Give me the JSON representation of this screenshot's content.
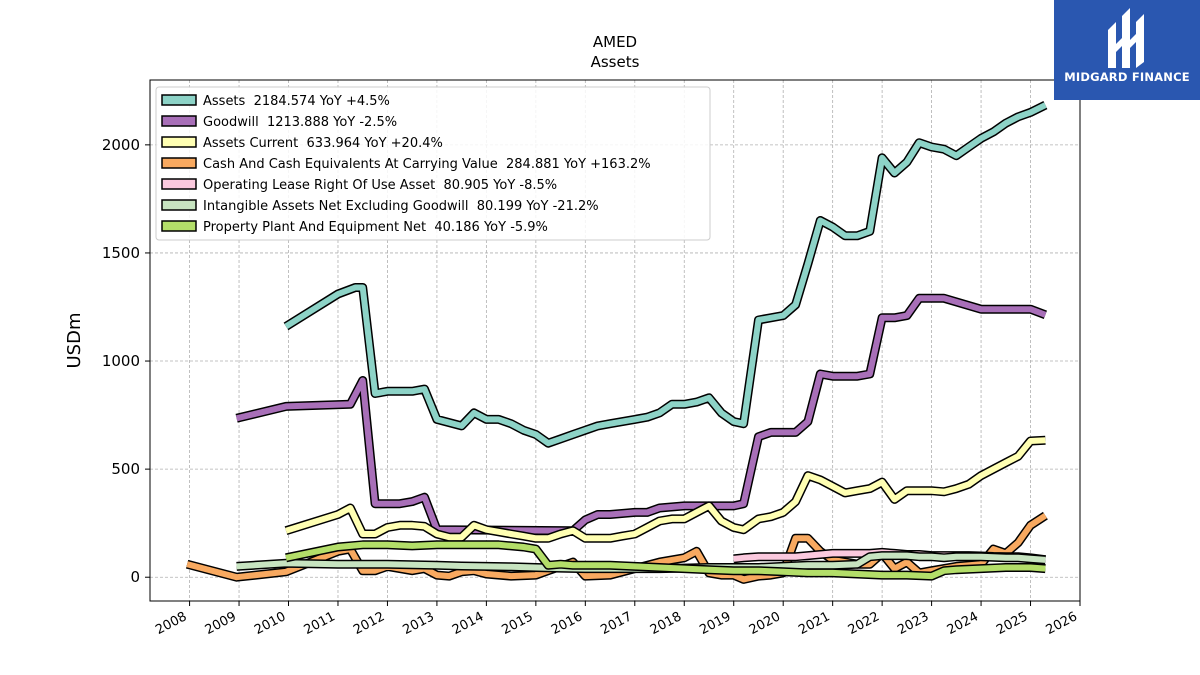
{
  "chart_data": {
    "type": "line",
    "title": "AMED",
    "subtitle": "Assets",
    "ylabel": "USDm",
    "xlabel": "",
    "xlim": [
      2007.2,
      2026.0
    ],
    "ylim": [
      -110,
      2300
    ],
    "yticks": [
      0,
      500,
      1000,
      1500,
      2000
    ],
    "xticks": [
      "2008",
      "2009",
      "2010",
      "2011",
      "2012",
      "2013",
      "2014",
      "2015",
      "2016",
      "2017",
      "2018",
      "2019",
      "2020",
      "2021",
      "2022",
      "2023",
      "2024",
      "2025",
      "2026"
    ],
    "grid": true,
    "legend_position": "top-left",
    "series": [
      {
        "name": "Assets  2184.574 YoY +4.5%",
        "color": "#8dd3c7",
        "x": [
          2009.95,
          2011.0,
          2011.35,
          2011.5,
          2011.75,
          2012.0,
          2012.25,
          2012.5,
          2012.75,
          2013.0,
          2013.5,
          2013.75,
          2014.0,
          2014.25,
          2014.5,
          2014.75,
          2015.0,
          2015.25,
          2015.5,
          2015.75,
          2016.0,
          2016.25,
          2016.5,
          2016.75,
          2017.0,
          2017.25,
          2017.5,
          2017.75,
          2018.0,
          2018.25,
          2018.5,
          2018.75,
          2019.0,
          2019.2,
          2019.5,
          2019.75,
          2020.0,
          2020.25,
          2020.5,
          2020.75,
          2021.0,
          2021.25,
          2021.5,
          2021.75,
          2022.0,
          2022.25,
          2022.5,
          2022.75,
          2023.0,
          2023.25,
          2023.5,
          2023.75,
          2024.0,
          2024.25,
          2024.5,
          2024.75,
          2025.0,
          2025.3
        ],
        "y": [
          1160,
          1310,
          1340,
          1340,
          850,
          860,
          860,
          860,
          870,
          730,
          700,
          760,
          730,
          730,
          710,
          680,
          660,
          620,
          640,
          660,
          680,
          700,
          710,
          720,
          730,
          740,
          760,
          800,
          800,
          810,
          830,
          760,
          720,
          710,
          1190,
          1200,
          1210,
          1260,
          1450,
          1650,
          1620,
          1580,
          1580,
          1600,
          1940,
          1870,
          1920,
          2010,
          1990,
          1980,
          1950,
          1990,
          2030,
          2060,
          2100,
          2130,
          2150,
          2184
        ]
      },
      {
        "name": "Goodwill  1213.888 YoY -2.5%",
        "color": "#a86fb8",
        "x": [
          2008.95,
          2009.95,
          2011.25,
          2011.5,
          2011.75,
          2012.0,
          2012.25,
          2012.5,
          2012.75,
          2013.0,
          2015.75,
          2016.0,
          2016.25,
          2016.5,
          2017.0,
          2017.25,
          2017.5,
          2018.0,
          2018.5,
          2018.75,
          2019.0,
          2019.2,
          2019.5,
          2019.75,
          2020.0,
          2020.25,
          2020.5,
          2020.75,
          2021.0,
          2021.25,
          2021.5,
          2021.75,
          2022.0,
          2022.25,
          2022.5,
          2022.75,
          2023.0,
          2023.25,
          2024.0,
          2024.5,
          2024.75,
          2025.0,
          2025.3
        ],
        "y": [
          735,
          790,
          800,
          910,
          340,
          340,
          340,
          350,
          370,
          220,
          215,
          265,
          290,
          290,
          300,
          300,
          320,
          330,
          330,
          330,
          330,
          340,
          650,
          670,
          670,
          670,
          720,
          940,
          930,
          930,
          930,
          940,
          1200,
          1200,
          1210,
          1290,
          1290,
          1290,
          1240,
          1240,
          1240,
          1240,
          1214
        ]
      },
      {
        "name": "Assets Current  633.964 YoY +20.4%",
        "color": "#ffffb3",
        "x": [
          2009.95,
          2011.0,
          2011.25,
          2011.5,
          2011.75,
          2012.0,
          2012.25,
          2012.5,
          2012.75,
          2013.0,
          2013.25,
          2013.5,
          2013.75,
          2014.0,
          2014.25,
          2014.5,
          2014.75,
          2015.0,
          2015.25,
          2015.5,
          2015.75,
          2016.0,
          2016.25,
          2016.5,
          2016.75,
          2017.0,
          2017.25,
          2017.5,
          2017.75,
          2018.0,
          2018.25,
          2018.5,
          2018.75,
          2019.0,
          2019.2,
          2019.5,
          2019.75,
          2020.0,
          2020.25,
          2020.5,
          2020.75,
          2021.0,
          2021.25,
          2021.5,
          2021.75,
          2022.0,
          2022.25,
          2022.5,
          2022.75,
          2023.0,
          2023.25,
          2023.5,
          2023.75,
          2024.0,
          2024.25,
          2024.5,
          2024.75,
          2025.0,
          2025.3
        ],
        "y": [
          215,
          290,
          320,
          200,
          200,
          230,
          240,
          240,
          235,
          200,
          185,
          185,
          240,
          220,
          210,
          200,
          190,
          180,
          180,
          200,
          215,
          180,
          180,
          180,
          190,
          200,
          230,
          260,
          270,
          270,
          300,
          330,
          260,
          230,
          220,
          270,
          280,
          300,
          350,
          470,
          450,
          420,
          390,
          400,
          410,
          440,
          360,
          400,
          400,
          400,
          395,
          410,
          430,
          470,
          500,
          530,
          560,
          630,
          634
        ]
      },
      {
        "name": "Cash And Cash Equivalents At Carrying Value  284.881 YoY +163.2%",
        "color": "#f8a960",
        "x": [
          2007.95,
          2008.95,
          2009.95,
          2011.0,
          2011.25,
          2011.5,
          2011.75,
          2012.0,
          2012.5,
          2012.75,
          2013.0,
          2013.25,
          2013.5,
          2013.75,
          2014.0,
          2014.5,
          2015.0,
          2015.25,
          2015.5,
          2015.75,
          2016.0,
          2016.5,
          2017.0,
          2017.5,
          2018.0,
          2018.25,
          2018.5,
          2018.75,
          2019.0,
          2019.2,
          2019.5,
          2019.75,
          2020.0,
          2020.25,
          2020.5,
          2020.75,
          2021.0,
          2021.5,
          2021.75,
          2022.0,
          2022.25,
          2022.5,
          2022.75,
          2023.0,
          2023.5,
          2024.0,
          2024.25,
          2024.5,
          2024.75,
          2025.0,
          2025.3
        ],
        "y": [
          60,
          0,
          25,
          120,
          130,
          30,
          30,
          50,
          30,
          40,
          10,
          5,
          25,
          30,
          15,
          5,
          10,
          30,
          50,
          70,
          5,
          10,
          40,
          70,
          90,
          120,
          20,
          10,
          10,
          -10,
          5,
          10,
          20,
          180,
          180,
          120,
          80,
          60,
          60,
          110,
          40,
          70,
          20,
          30,
          50,
          60,
          130,
          110,
          160,
          240,
          285
        ]
      },
      {
        "name": "Operating Lease Right Of Use Asset  80.905 YoY -8.5%",
        "color": "#fbc9de",
        "x": [
          2019.0,
          2019.2,
          2019.5,
          2019.75,
          2020.0,
          2020.25,
          2020.5,
          2020.75,
          2021.0,
          2021.25,
          2021.5,
          2021.75,
          2022.0,
          2022.25,
          2022.5,
          2022.75,
          2023.0,
          2023.25,
          2023.5,
          2023.75,
          2024.0,
          2024.25,
          2024.5,
          2024.75,
          2025.0,
          2025.3
        ],
        "y": [
          85,
          90,
          95,
          95,
          95,
          95,
          100,
          105,
          110,
          110,
          110,
          110,
          115,
          110,
          105,
          105,
          100,
          100,
          100,
          100,
          98,
          96,
          95,
          95,
          90,
          81
        ]
      },
      {
        "name": "Intangible Assets Net Excluding Goodwill  80.199 YoY -21.2%",
        "color": "#c7e4c0",
        "x": [
          2008.95,
          2009.95,
          2011.0,
          2011.5,
          2012.0,
          2012.5,
          2013.0,
          2013.5,
          2014.0,
          2014.5,
          2015.0,
          2015.5,
          2016.0,
          2016.5,
          2017.0,
          2017.5,
          2018.0,
          2018.5,
          2019.0,
          2019.5,
          2020.0,
          2020.5,
          2021.0,
          2021.5,
          2021.75,
          2022.0,
          2022.5,
          2022.75,
          2023.0,
          2023.25,
          2023.5,
          2024.0,
          2024.5,
          2024.75,
          2025.0,
          2025.3
        ],
        "y": [
          50,
          65,
          60,
          60,
          60,
          58,
          55,
          52,
          50,
          48,
          45,
          42,
          40,
          40,
          40,
          40,
          42,
          45,
          45,
          45,
          50,
          55,
          55,
          60,
          95,
          100,
          100,
          95,
          95,
          90,
          95,
          95,
          90,
          90,
          85,
          80
        ]
      },
      {
        "name": "Property Plant And Equipment Net  40.186 YoY -5.9%",
        "color": "#b3de69",
        "x": [
          2009.95,
          2011.0,
          2011.5,
          2012.0,
          2012.5,
          2013.0,
          2013.5,
          2014.0,
          2014.25,
          2014.5,
          2014.75,
          2015.0,
          2015.25,
          2015.5,
          2015.75,
          2016.0,
          2016.5,
          2017.0,
          2017.5,
          2018.0,
          2018.5,
          2019.0,
          2019.5,
          2020.0,
          2020.5,
          2021.0,
          2021.5,
          2022.0,
          2022.5,
          2023.0,
          2023.25,
          2023.5,
          2024.0,
          2024.5,
          2025.0,
          2025.3
        ],
        "y": [
          90,
          140,
          150,
          150,
          145,
          150,
          150,
          150,
          150,
          145,
          140,
          130,
          55,
          60,
          55,
          55,
          55,
          50,
          45,
          40,
          35,
          30,
          30,
          25,
          20,
          20,
          15,
          10,
          10,
          5,
          30,
          35,
          40,
          45,
          45,
          40
        ]
      }
    ]
  },
  "logo": {
    "text": "MIDGARD FINANCE"
  }
}
